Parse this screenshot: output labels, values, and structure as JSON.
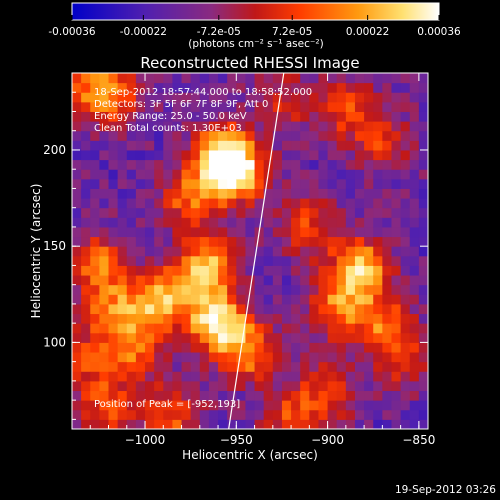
{
  "colorbar": {
    "tick_labels": [
      "-0.00036",
      "-0.00022",
      "-7.2e-05",
      "7.2e-05",
      "0.00022",
      "0.00036"
    ],
    "tick_values": [
      -0.00036,
      -0.00022,
      -7.2e-05,
      7.2e-05,
      0.00022,
      0.00036
    ],
    "range": [
      -0.00036,
      0.00036
    ],
    "units_label": "(photons cm⁻² s⁻¹ asec⁻²)",
    "colors": [
      "#0000c8",
      "#5020b0",
      "#8a2a80",
      "#c01818",
      "#ff3c00",
      "#ff9a10",
      "#ffe070",
      "#ffffff"
    ]
  },
  "chart_data": {
    "type": "heatmap",
    "title": "Reconstructed RHESSI Image",
    "xlabel": "Heliocentric X (arcsec)",
    "ylabel": "Heliocentric Y (arcsec)",
    "xlim": [
      -1040,
      -845
    ],
    "ylim": [
      55,
      240
    ],
    "xticks": [
      -1000,
      -950,
      -900,
      -850
    ],
    "xtick_labels": [
      "−1000",
      "−950",
      "−900",
      "−850"
    ],
    "yticks": [
      100,
      150,
      200
    ],
    "ytick_labels": [
      "100",
      "150",
      "200"
    ],
    "info_lines": [
      "18-Sep-2012 18:57:44.000 to 18:58:52.000",
      "Detectors: 3F 5F 6F 7F 8F 9F, Att 0",
      "Energy Range: 25.0 - 50.0 keV",
      "Clean    Total counts: 1.30E+03"
    ],
    "peak_label": "Position of Peak = [-952,193]",
    "peak": [
      -952,
      193
    ],
    "limb_line": [
      [
        -955,
        50
      ],
      [
        -924,
        240
      ]
    ],
    "hotspots": [
      {
        "x": -958,
        "y": 196,
        "amp": 1.0
      },
      {
        "x": -948,
        "y": 188,
        "amp": 0.7
      },
      {
        "x": -975,
        "y": 175,
        "amp": 0.55
      },
      {
        "x": -965,
        "y": 140,
        "amp": 0.8
      },
      {
        "x": -960,
        "y": 110,
        "amp": 0.95
      },
      {
        "x": -942,
        "y": 95,
        "amp": 0.6
      },
      {
        "x": -985,
        "y": 125,
        "amp": 0.55
      },
      {
        "x": -1000,
        "y": 118,
        "amp": 0.5
      },
      {
        "x": -1025,
        "y": 140,
        "amp": 0.6
      },
      {
        "x": -1020,
        "y": 115,
        "amp": 0.45
      },
      {
        "x": -1030,
        "y": 90,
        "amp": 0.4
      },
      {
        "x": -1020,
        "y": 65,
        "amp": 0.5
      },
      {
        "x": -985,
        "y": 62,
        "amp": 0.5
      },
      {
        "x": -1015,
        "y": 230,
        "amp": 0.45
      },
      {
        "x": -1030,
        "y": 230,
        "amp": 0.5
      },
      {
        "x": -882,
        "y": 138,
        "amp": 0.85
      },
      {
        "x": -895,
        "y": 118,
        "amp": 0.55
      },
      {
        "x": -870,
        "y": 110,
        "amp": 0.5
      },
      {
        "x": -910,
        "y": 160,
        "amp": 0.45
      },
      {
        "x": -920,
        "y": 60,
        "amp": 0.45
      },
      {
        "x": -900,
        "y": 75,
        "amp": 0.45
      },
      {
        "x": -858,
        "y": 92,
        "amp": 0.4
      },
      {
        "x": -890,
        "y": 222,
        "amp": 0.45
      },
      {
        "x": -870,
        "y": 205,
        "amp": 0.4
      },
      {
        "x": -925,
        "y": 225,
        "amp": 0.35
      },
      {
        "x": -1005,
        "y": 95,
        "amp": 0.45
      }
    ]
  },
  "footer": {
    "timestamp": "19-Sep-2012 03:26"
  }
}
